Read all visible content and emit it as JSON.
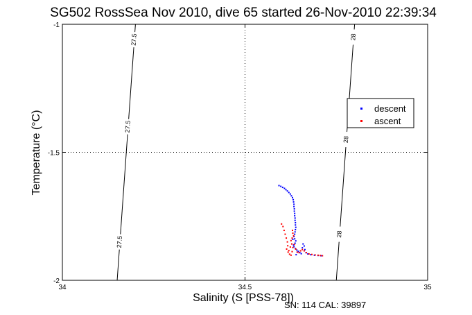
{
  "chart_data": {
    "type": "scatter",
    "title": "SG502 RossSea Nov 2010, dive 65 started 26-Nov-2010 22:39:34",
    "xlabel": "Salinity (S [PSS-78])",
    "ylabel": "Temperature (°C)",
    "footer": "SN: 114  CAL: 39897",
    "xlim": [
      34,
      35
    ],
    "ylim": [
      -2,
      -1
    ],
    "x_ticks": [
      34,
      34.5,
      35
    ],
    "y_ticks": [
      -2,
      -1.5,
      -1
    ],
    "x_tick_labels": [
      "34",
      "34.5",
      "35"
    ],
    "y_tick_labels": [
      "-2",
      "-1.5",
      "-1"
    ],
    "grid": "dotted at interior ticks",
    "legend_position": "right",
    "isopycnals": [
      {
        "label": "27.5",
        "points": [
          [
            34.15,
            -2.0
          ],
          [
            34.2,
            -1.0
          ]
        ],
        "label_y": [
          -1.4,
          -1.85,
          -1.06
        ]
      },
      {
        "label": "28",
        "points": [
          [
            34.75,
            -2.0
          ],
          [
            34.8,
            -1.0
          ]
        ],
        "label_y": [
          -1.45,
          -1.82,
          -1.05
        ]
      }
    ],
    "series": [
      {
        "name": "descent",
        "color": "#0000ff",
        "points": [
          [
            34.593,
            -1.63
          ],
          [
            34.598,
            -1.633
          ],
          [
            34.603,
            -1.637
          ],
          [
            34.608,
            -1.641
          ],
          [
            34.612,
            -1.646
          ],
          [
            34.616,
            -1.651
          ],
          [
            34.62,
            -1.657
          ],
          [
            34.624,
            -1.663
          ],
          [
            34.627,
            -1.67
          ],
          [
            34.63,
            -1.677
          ],
          [
            34.632,
            -1.685
          ],
          [
            34.633,
            -1.694
          ],
          [
            34.634,
            -1.703
          ],
          [
            34.634,
            -1.712
          ],
          [
            34.635,
            -1.721
          ],
          [
            34.635,
            -1.73
          ],
          [
            34.636,
            -1.739
          ],
          [
            34.636,
            -1.748
          ],
          [
            34.637,
            -1.757
          ],
          [
            34.637,
            -1.766
          ],
          [
            34.638,
            -1.775
          ],
          [
            34.638,
            -1.784
          ],
          [
            34.639,
            -1.793
          ],
          [
            34.638,
            -1.802
          ],
          [
            34.637,
            -1.811
          ],
          [
            34.636,
            -1.82
          ],
          [
            34.634,
            -1.829
          ],
          [
            34.636,
            -1.838
          ],
          [
            34.639,
            -1.846
          ],
          [
            34.637,
            -1.855
          ],
          [
            34.633,
            -1.862
          ],
          [
            34.634,
            -1.869
          ],
          [
            34.638,
            -1.876
          ],
          [
            34.642,
            -1.882
          ],
          [
            34.646,
            -1.887
          ],
          [
            34.65,
            -1.892
          ],
          [
            34.654,
            -1.896
          ],
          [
            34.657,
            -1.873
          ],
          [
            34.659,
            -1.858
          ],
          [
            34.662,
            -1.866
          ],
          [
            34.664,
            -1.88
          ],
          [
            34.667,
            -1.892
          ],
          [
            34.672,
            -1.897
          ],
          [
            34.68,
            -1.9
          ],
          [
            34.69,
            -1.902
          ],
          [
            34.7,
            -1.903
          ],
          [
            34.708,
            -1.904
          ],
          [
            34.64,
            -1.9
          ],
          [
            34.643,
            -1.89
          ],
          [
            34.631,
            -1.84
          ]
        ]
      },
      {
        "name": "ascent",
        "color": "#ff0000",
        "points": [
          [
            34.6,
            -1.78
          ],
          [
            34.604,
            -1.79
          ],
          [
            34.607,
            -1.805
          ],
          [
            34.61,
            -1.82
          ],
          [
            34.613,
            -1.835
          ],
          [
            34.616,
            -1.85
          ],
          [
            34.617,
            -1.865
          ],
          [
            34.614,
            -1.878
          ],
          [
            34.618,
            -1.89
          ],
          [
            34.622,
            -1.898
          ],
          [
            34.626,
            -1.902
          ],
          [
            34.629,
            -1.888
          ],
          [
            34.631,
            -1.872
          ],
          [
            34.628,
            -1.858
          ],
          [
            34.626,
            -1.845
          ],
          [
            34.629,
            -1.835
          ],
          [
            34.633,
            -1.826
          ],
          [
            34.631,
            -1.816
          ],
          [
            34.63,
            -1.805
          ],
          [
            34.635,
            -1.86
          ],
          [
            34.639,
            -1.878
          ],
          [
            34.643,
            -1.89
          ],
          [
            34.648,
            -1.892
          ],
          [
            34.652,
            -1.885
          ],
          [
            34.657,
            -1.88
          ],
          [
            34.662,
            -1.885
          ],
          [
            34.668,
            -1.892
          ],
          [
            34.675,
            -1.897
          ],
          [
            34.683,
            -1.899
          ],
          [
            34.692,
            -1.901
          ],
          [
            34.7,
            -1.902
          ],
          [
            34.706,
            -1.903
          ],
          [
            34.712,
            -1.904
          ],
          [
            34.62,
            -1.884
          ],
          [
            34.624,
            -1.87
          ]
        ]
      }
    ]
  }
}
